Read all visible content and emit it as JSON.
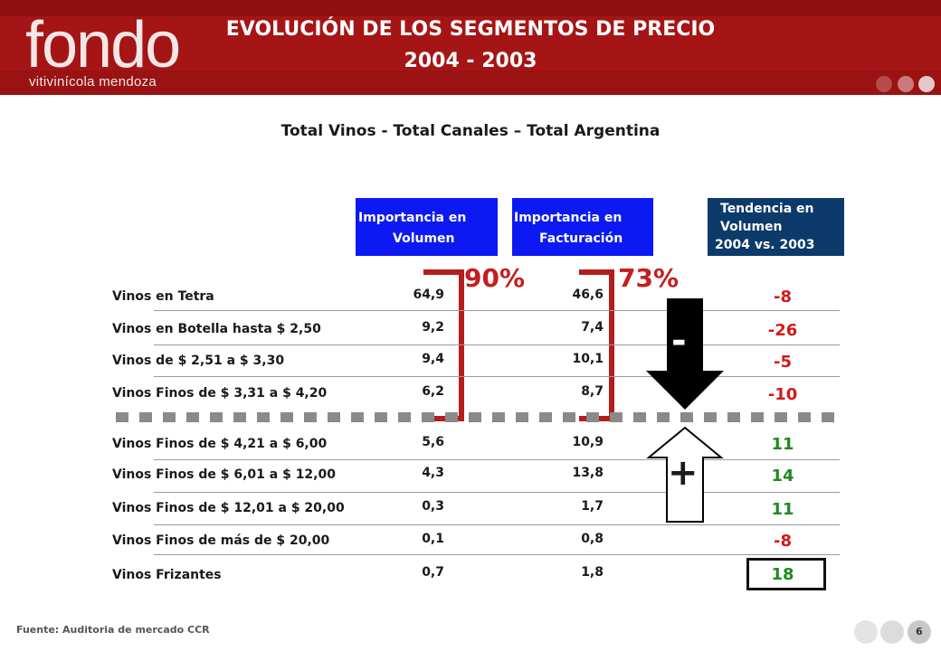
{
  "header": {
    "logo": "fondo",
    "logo_sub": "vitivinícola mendoza",
    "title_line1": "EVOLUCIÓN DE LOS SEGMENTOS DE PRECIO",
    "title_line2": "2004 - 2003"
  },
  "subtitle": "Total Vinos - Total Canales – Total Argentina",
  "columns": {
    "volumen": [
      "Importancia en",
      "Volumen"
    ],
    "facturacion": [
      "Importancia en",
      "Facturación"
    ],
    "tendencia": [
      "Tendencia en",
      "Volumen",
      "2004 vs. 2003"
    ]
  },
  "totals": {
    "volumen": "90%",
    "facturacion": "73%"
  },
  "rows": [
    {
      "label": "Vinos en Tetra",
      "volumen": "64,9",
      "facturacion": "46,6",
      "tendencia": "-8"
    },
    {
      "label": "Vinos en Botella hasta $ 2,50",
      "volumen": "9,2",
      "facturacion": "7,4",
      "tendencia": "-26"
    },
    {
      "label": "Vinos de $ 2,51 a $ 3,30",
      "volumen": "9,4",
      "facturacion": "10,1",
      "tendencia": "-5"
    },
    {
      "label": "Vinos Finos de $ 3,31 a $ 4,20",
      "volumen": "6,2",
      "facturacion": "8,7",
      "tendencia": "-10"
    },
    {
      "label": "Vinos Finos de $ 4,21 a $ 6,00",
      "volumen": "5,6",
      "facturacion": "10,9",
      "tendencia": "11"
    },
    {
      "label": "Vinos Finos de $ 6,01 a $ 12,00",
      "volumen": "4,3",
      "facturacion": "13,8",
      "tendencia": "14"
    },
    {
      "label": "Vinos Finos de $ 12,01 a $ 20,00",
      "volumen": "0,3",
      "facturacion": "1,7",
      "tendencia": "11"
    },
    {
      "label": "Vinos Finos de más de $ 20,00",
      "volumen": "0,1",
      "facturacion": "0,8",
      "tendencia": "-8"
    },
    {
      "label": "Vinos Frizantes",
      "volumen": "0,7",
      "facturacion": "1,8",
      "tendencia": "18"
    }
  ],
  "arrows": {
    "down_sign": "-",
    "up_sign": "+"
  },
  "colors": {
    "header_red": "#a51515",
    "negative": "#d01a1a",
    "positive": "#1f8a1f",
    "box_blue": "#0d19f2",
    "box_navy": "#0c3a6a"
  },
  "footer": {
    "source": "Fuente: Auditoria de mercado CCR",
    "page": "6"
  }
}
